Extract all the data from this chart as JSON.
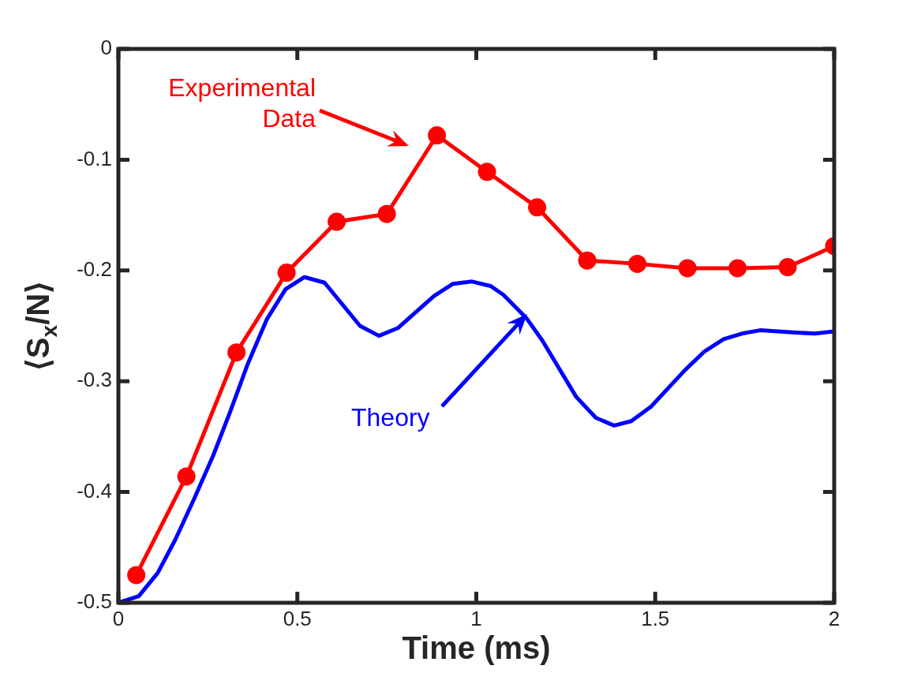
{
  "chart_data": {
    "type": "line",
    "xlabel": "Time (ms)",
    "ylabel": "⟨S$_{x}$/N⟩",
    "xlim": [
      0,
      2
    ],
    "xticks": [
      0,
      0.5,
      1,
      1.5,
      2
    ],
    "ylim": [
      -0.5,
      0
    ],
    "yticks": [
      -0.5,
      -0.4,
      -0.3,
      -0.2,
      -0.1,
      0
    ],
    "grid": false,
    "legend": false,
    "series": [
      {
        "color": "#ff0000",
        "marker": "circle",
        "x": [
          0.05,
          0.19,
          0.33,
          0.47,
          0.61,
          0.75,
          0.89,
          1.03,
          1.17,
          1.31,
          1.45,
          1.59,
          1.73,
          1.87,
          2.0
        ],
        "values": [
          -0.475,
          -0.386,
          -0.274,
          -0.202,
          -0.156,
          -0.149,
          -0.078,
          -0.111,
          -0.143,
          -0.191,
          -0.194,
          -0.198,
          -0.198,
          -0.197,
          -0.178
        ]
      },
      {
        "color": "#0000ff",
        "marker": "none",
        "x": [
          0,
          0.057,
          0.11,
          0.159,
          0.212,
          0.265,
          0.313,
          0.362,
          0.415,
          0.467,
          0.52,
          0.576,
          0.675,
          0.728,
          0.781,
          0.882,
          0.935,
          0.988,
          1.04,
          1.076,
          1.14,
          1.184,
          1.279,
          1.334,
          1.385,
          1.433,
          1.488,
          1.583,
          1.638,
          1.691,
          1.742,
          1.793,
          1.892,
          1.947,
          2.0
        ],
        "values": [
          -0.5,
          -0.494,
          -0.473,
          -0.443,
          -0.406,
          -0.367,
          -0.327,
          -0.284,
          -0.244,
          -0.217,
          -0.206,
          -0.211,
          -0.25,
          -0.259,
          -0.252,
          -0.223,
          -0.212,
          -0.21,
          -0.214,
          -0.222,
          -0.243,
          -0.263,
          -0.314,
          -0.333,
          -0.34,
          -0.336,
          -0.323,
          -0.29,
          -0.273,
          -0.262,
          -0.257,
          -0.254,
          -0.256,
          -0.257,
          -0.255
        ]
      }
    ],
    "annotations": [
      "Experimental Data",
      "Theory"
    ]
  }
}
